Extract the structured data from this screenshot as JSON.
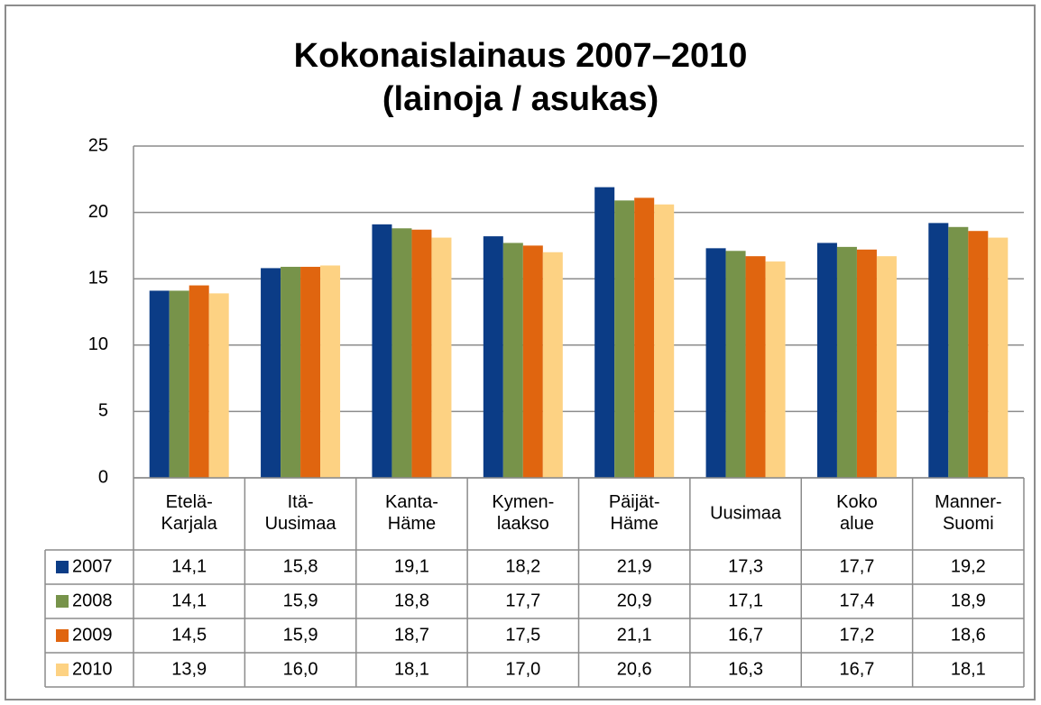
{
  "chart_data": {
    "type": "bar",
    "title": "Kokonaislainaus 2007–2010",
    "subtitle": "(lainoja / asukas)",
    "categories": [
      "Etelä-\nKarjala",
      "Itä-\nUusimaa",
      "Kanta-\nHäme",
      "Kymen-\nlaakso",
      "Päijät-\nHäme",
      "Uusimaa",
      "Koko\nalue",
      "Manner-\nSuomi"
    ],
    "series": [
      {
        "name": "2007",
        "color": "#0b3c86",
        "values": [
          14.1,
          15.8,
          19.1,
          18.2,
          21.9,
          17.3,
          17.7,
          19.2
        ],
        "value_labels": [
          "14,1",
          "15,8",
          "19,1",
          "18,2",
          "21,9",
          "17,3",
          "17,7",
          "19,2"
        ]
      },
      {
        "name": "2008",
        "color": "#77934a",
        "values": [
          14.1,
          15.9,
          18.8,
          17.7,
          20.9,
          17.1,
          17.4,
          18.9
        ],
        "value_labels": [
          "14,1",
          "15,9",
          "18,8",
          "17,7",
          "20,9",
          "17,1",
          "17,4",
          "18,9"
        ]
      },
      {
        "name": "2009",
        "color": "#e0650f",
        "values": [
          14.5,
          15.9,
          18.7,
          17.5,
          21.1,
          16.7,
          17.2,
          18.6
        ],
        "value_labels": [
          "14,5",
          "15,9",
          "18,7",
          "17,5",
          "21,1",
          "16,7",
          "17,2",
          "18,6"
        ]
      },
      {
        "name": "2010",
        "color": "#fdd283",
        "values": [
          13.9,
          16.0,
          18.1,
          17.0,
          20.6,
          16.3,
          16.7,
          18.1
        ],
        "value_labels": [
          "13,9",
          "16,0",
          "18,1",
          "17,0",
          "20,6",
          "16,3",
          "16,7",
          "18,1"
        ]
      }
    ],
    "ylim": [
      0,
      25
    ],
    "yticks": [
      0,
      5,
      10,
      15,
      20,
      25
    ],
    "grid": true
  }
}
